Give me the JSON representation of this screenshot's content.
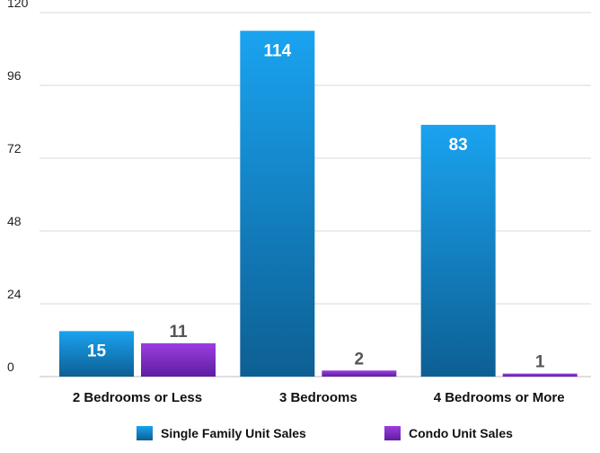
{
  "chart_data": {
    "type": "bar",
    "title": "",
    "xlabel": "",
    "ylabel": "",
    "categories": [
      "2 Bedrooms or Less",
      "3 Bedrooms",
      "4 Bedrooms or More"
    ],
    "ylim": [
      0,
      120
    ],
    "yticks": [
      0,
      24,
      48,
      72,
      96,
      120
    ],
    "grid": true,
    "legend_position": "bottom-center",
    "series": [
      {
        "name": "Single Family Unit Sales",
        "values": [
          15,
          114,
          83
        ],
        "color": "#1a8fd8",
        "label_color": "#ffffff",
        "label_placement": "inside-top"
      },
      {
        "name": "Condo Unit Sales",
        "values": [
          11,
          2,
          1
        ],
        "color": "#8a2fd0",
        "label_color": "#555555",
        "label_placement": "above"
      }
    ]
  }
}
